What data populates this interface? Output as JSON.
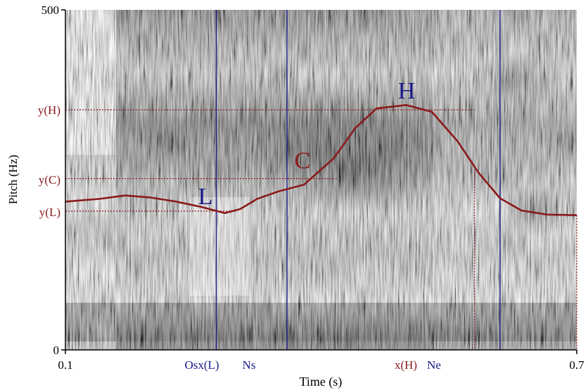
{
  "chart_data": {
    "type": "line",
    "xlabel": "Time (s)",
    "ylabel": "Pitch (Hz)",
    "xlim": [
      0.1,
      0.7
    ],
    "ylim": [
      0,
      500
    ],
    "x_tick_labels": [
      "0.1",
      "0.7"
    ],
    "y_tick_labels": [
      "0",
      "500"
    ],
    "series": [
      {
        "color": "#8b1a1a",
        "x": [
          0.1,
          0.14,
          0.17,
          0.2,
          0.23,
          0.26,
          0.287,
          0.305,
          0.325,
          0.35,
          0.38,
          0.415,
          0.44,
          0.465,
          0.5,
          0.53,
          0.56,
          0.585,
          0.61,
          0.635,
          0.665,
          0.7
        ],
        "y": [
          218,
          222,
          227,
          224,
          218,
          210,
          201,
          207,
          222,
          233,
          243,
          282,
          326,
          355,
          360,
          350,
          307,
          260,
          223,
          205,
          199,
          198
        ]
      }
    ],
    "vertical_markers": [
      {
        "label": "Osx(L)",
        "x": 0.277,
        "style": "solid",
        "color": "#1a1a8c"
      },
      {
        "label": "Ns",
        "x": 0.36,
        "style": "solid",
        "color": "#1a1a8c"
      },
      {
        "label": "Ne",
        "x": 0.61,
        "style": "solid",
        "color": "#1a1a8c"
      },
      {
        "label": "x(H)",
        "x": 0.58,
        "style": "dotted",
        "color": "#8b1a1a"
      }
    ],
    "horizontal_markers": [
      {
        "label": "y(H)",
        "y": 353
      },
      {
        "label": "y(C)",
        "y": 252
      },
      {
        "label": "y(L)",
        "y": 204
      }
    ],
    "annotations": [
      {
        "text": "L",
        "color": "#1a1a8c"
      },
      {
        "text": "C",
        "color": "#8b1a1a"
      },
      {
        "text": "H",
        "color": "#1a1a8c"
      }
    ],
    "background": "spectrogram (grayscale)",
    "grid": false
  }
}
